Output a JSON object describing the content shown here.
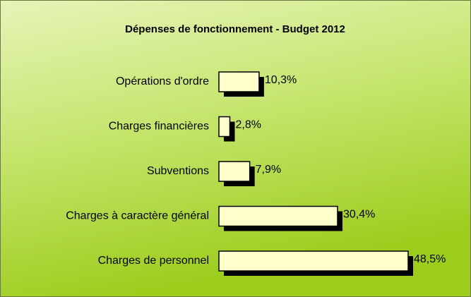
{
  "chart_data": {
    "type": "bar",
    "orientation": "horizontal",
    "title": "Dépenses de fonctionnement - Budget 2012",
    "categories": [
      "Opérations d'ordre",
      "Charges financières",
      "Subventions",
      "Charges à caractère général",
      "Charges de personnel"
    ],
    "values": [
      10.3,
      2.8,
      7.9,
      30.4,
      48.5
    ],
    "value_labels": [
      "10,3%",
      "2,8%",
      "7,9%",
      "30,4%",
      "48,5%"
    ],
    "color": "#ffffcc"
  }
}
